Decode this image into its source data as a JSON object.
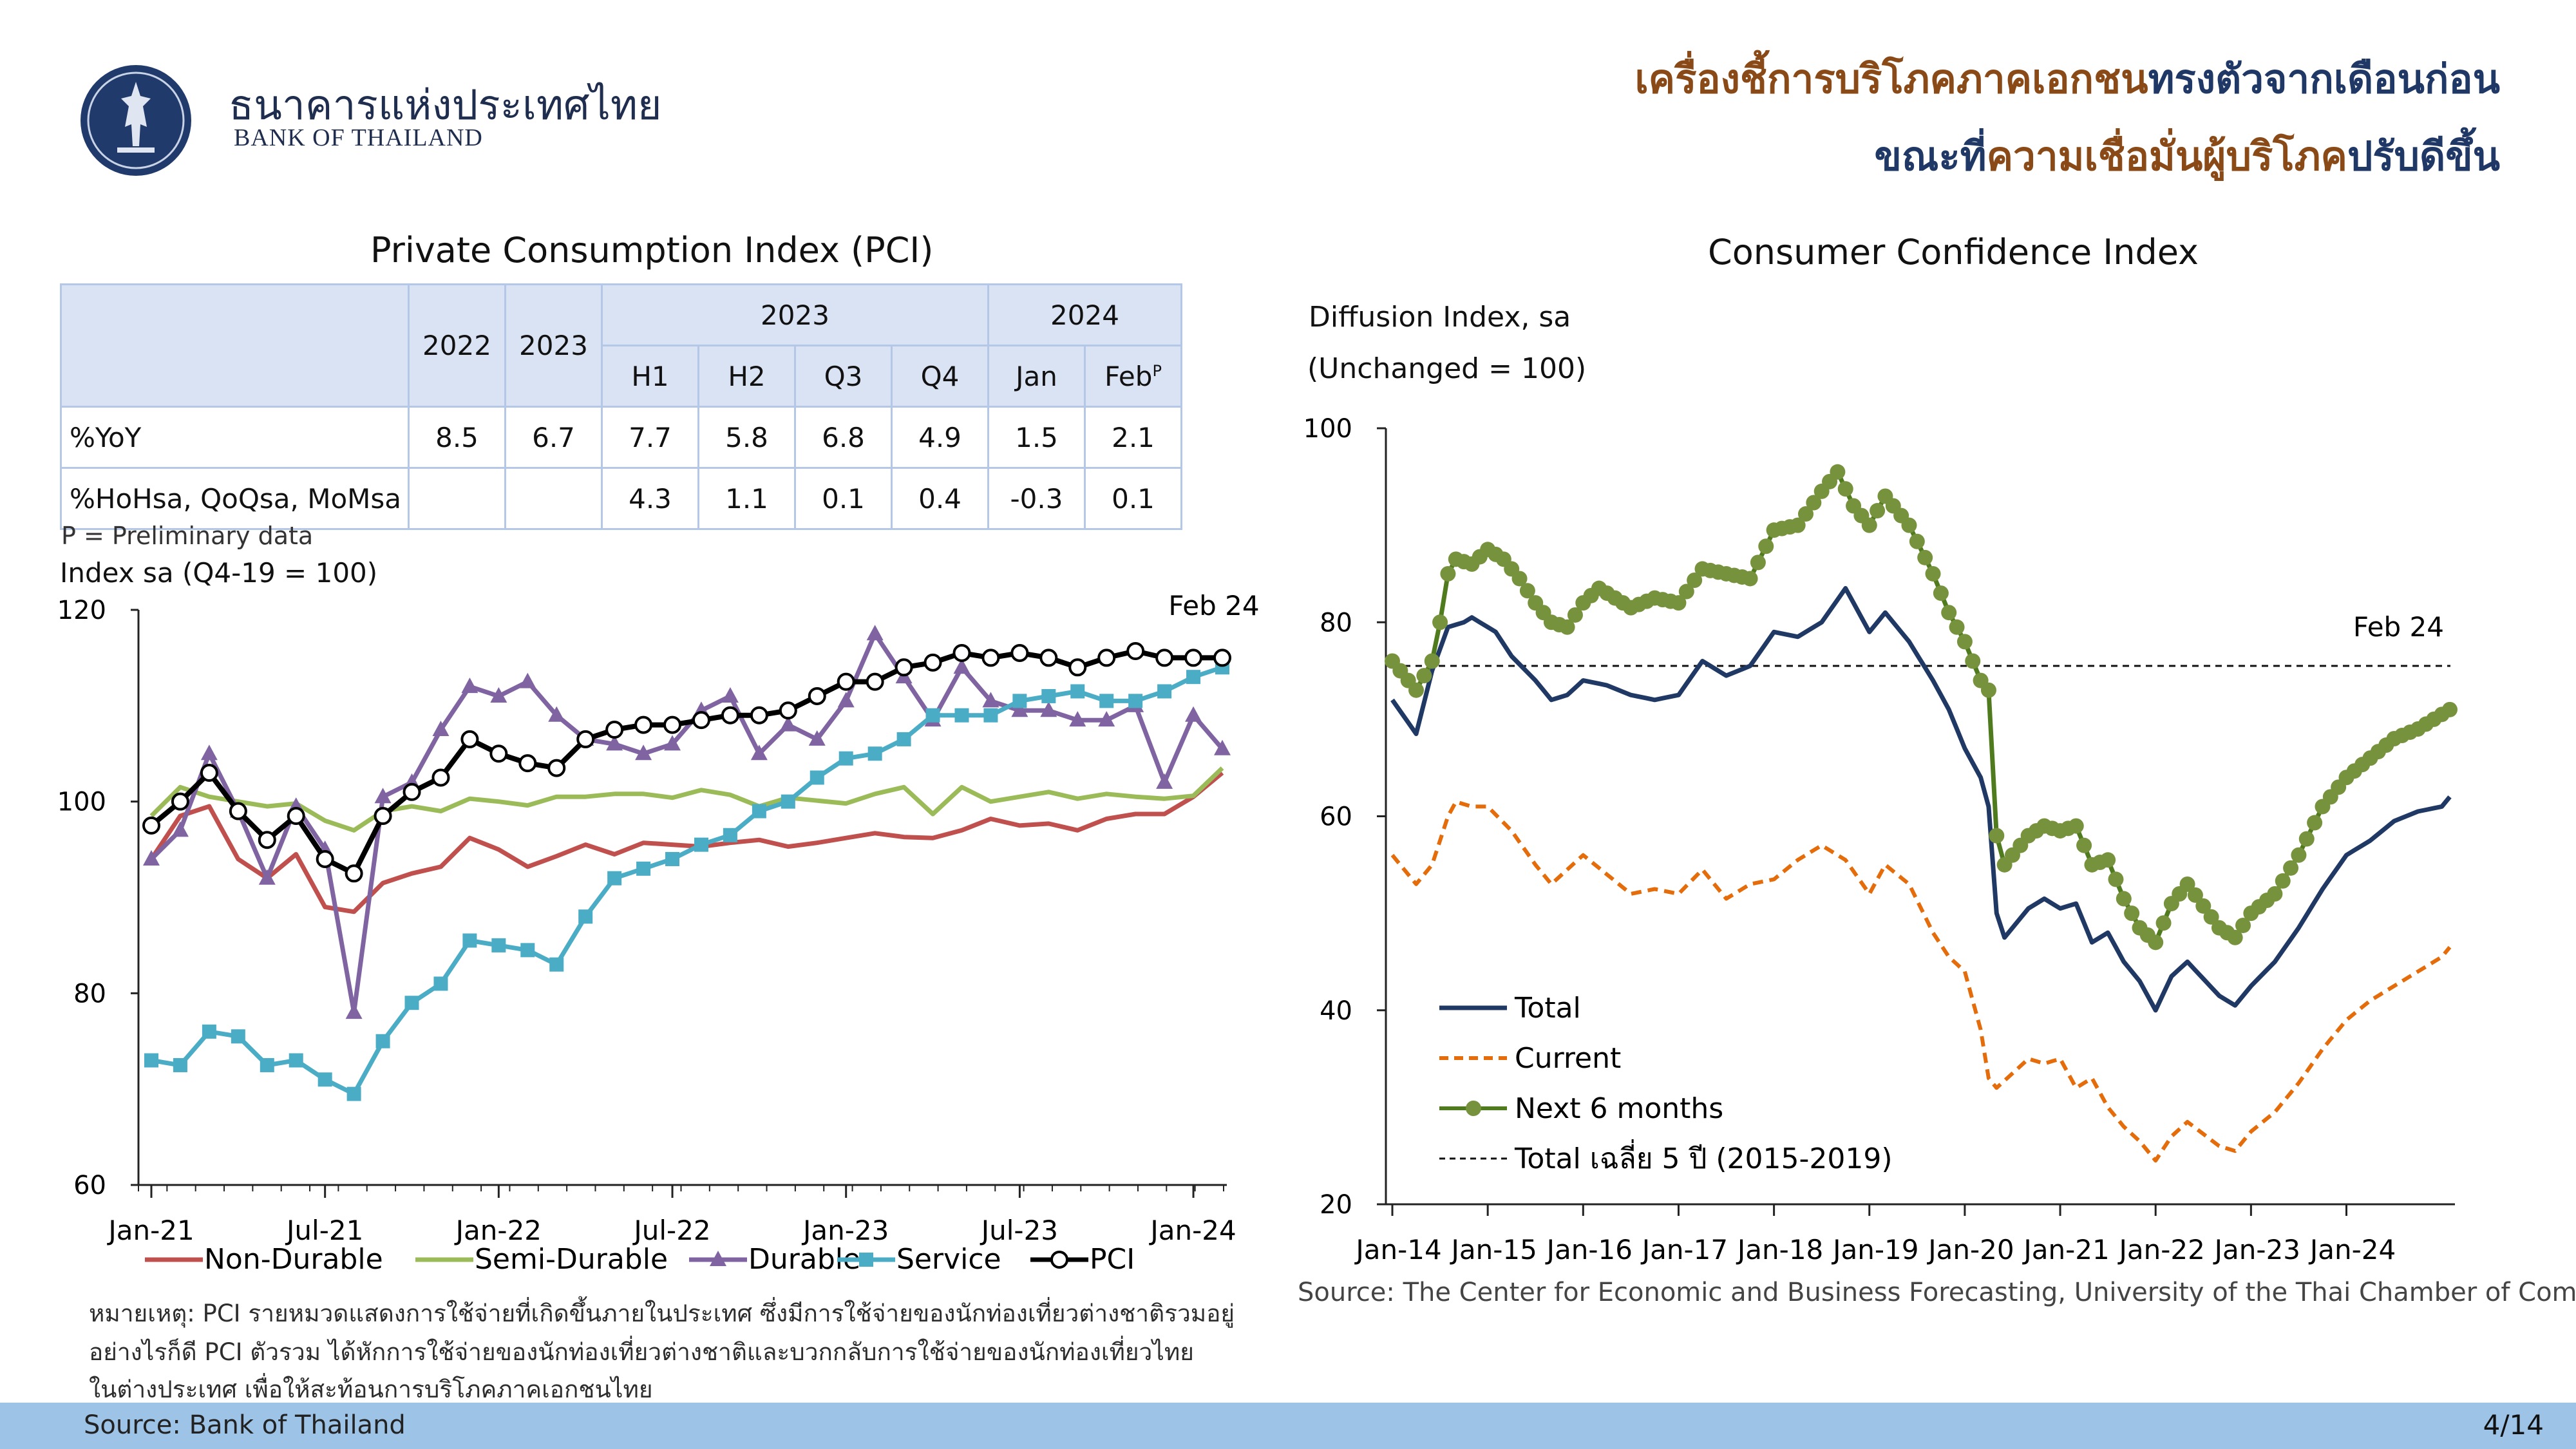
{
  "header": {
    "bank_name_th": "ธนาคารแห่งประเทศไทย",
    "bank_name_en": "BANK OF THAILAND",
    "headline_line1_a": "เครื่องชี้การบริโภคภาคเอกชน",
    "headline_line1_b": "ทรงตัวจากเดือนก่อน",
    "headline_line2_a": "ขณะที่",
    "headline_line2_b": "ความเชื่อมั่นผู้บริโภค",
    "headline_line2_c": "ปรับดีขึ้น"
  },
  "pci_table": {
    "title": "Private Consumption Index (PCI)",
    "years": [
      "2022",
      "2023"
    ],
    "group_2023": "2023",
    "group_2024": "2024",
    "sub_headers": [
      "H1",
      "H2",
      "Q3",
      "Q4",
      "Jan",
      "Feb"
    ],
    "feb_sup": "P",
    "rows": [
      {
        "label": "%YoY",
        "values": [
          "8.5",
          "6.7",
          "7.7",
          "5.8",
          "6.8",
          "4.9",
          "1.5",
          "2.1"
        ]
      },
      {
        "label": "%HoHsa, QoQsa, MoMsa",
        "values": [
          "",
          "",
          "4.3",
          "1.1",
          "0.1",
          "0.4",
          "-0.3",
          "0.1"
        ]
      }
    ],
    "footnote": "P = Preliminary data"
  },
  "notes": {
    "line1": "หมายเหตุ: PCI รายหมวดแสดงการใช้จ่ายที่เกิดขึ้นภายในประเทศ ซึ่งมีการใช้จ่ายของนักท่องเที่ยวต่างชาติรวมอยู่",
    "line2": "อย่างไรก็ดี PCI ตัวรวม ได้หักการใช้จ่ายของนักท่องเที่ยวต่างชาติและบวกกลับการใช้จ่ายของนักท่องเที่ยวไทย",
    "line3": "ในต่างประเทศ เพื่อให้สะท้อนการบริโภคภาคเอกชนไทย"
  },
  "footer": {
    "source_left": "Source: Bank of Thailand",
    "page": "4/14"
  },
  "cci": {
    "title": "Consumer Confidence Index",
    "source": "Source: The Center for Economic and Business Forecasting, University of the Thai Chamber of Commerce"
  },
  "colors": {
    "nondurable": "#c0504d",
    "semidurable": "#9bbb59",
    "durable": "#8064a2",
    "service": "#4bacc6",
    "pci": "#000000",
    "total": "#1f3864",
    "current": "#e46c0a",
    "next6": "#4f7b1e",
    "next6_marker": "#76923c"
  },
  "chart_data": [
    {
      "type": "line",
      "title": "",
      "ylabel": "Index sa (Q4-19 = 100)",
      "ylim": [
        60,
        120
      ],
      "yticks": [
        60,
        80,
        100,
        120
      ],
      "x": [
        "Jan-21",
        "Feb-21",
        "Mar-21",
        "Apr-21",
        "May-21",
        "Jun-21",
        "Jul-21",
        "Aug-21",
        "Sep-21",
        "Oct-21",
        "Nov-21",
        "Dec-21",
        "Jan-22",
        "Feb-22",
        "Mar-22",
        "Apr-22",
        "May-22",
        "Jun-22",
        "Jul-22",
        "Aug-22",
        "Sep-22",
        "Oct-22",
        "Nov-22",
        "Dec-22",
        "Jan-23",
        "Feb-23",
        "Mar-23",
        "Apr-23",
        "May-23",
        "Jun-23",
        "Jul-23",
        "Aug-23",
        "Sep-23",
        "Oct-23",
        "Nov-23",
        "Dec-23",
        "Jan-24",
        "Feb-24"
      ],
      "xtick_labels": [
        "Jan-21",
        "Jul-21",
        "Jan-22",
        "Jul-22",
        "Jan-23",
        "Jul-23",
        "Jan-24"
      ],
      "annotation": "Feb 24",
      "series": [
        {
          "name": "Non-Durable",
          "values": [
            94.0,
            98.5,
            99.5,
            94.0,
            92.0,
            94.5,
            89.0,
            88.5,
            91.5,
            92.5,
            93.2,
            96.2,
            95.0,
            93.2,
            94.3,
            95.5,
            94.5,
            95.7,
            95.5,
            95.3,
            95.7,
            96.0,
            95.3,
            95.7,
            96.2,
            96.7,
            96.3,
            96.2,
            97.0,
            98.2,
            97.5,
            97.7,
            97.0,
            98.2,
            98.7,
            98.7,
            100.5,
            103.0
          ]
        },
        {
          "name": "Semi-Durable",
          "values": [
            98.5,
            101.5,
            100.5,
            100.0,
            99.5,
            99.8,
            98.0,
            97.0,
            99.0,
            99.5,
            99.0,
            100.3,
            100.0,
            99.6,
            100.5,
            100.5,
            100.8,
            100.8,
            100.4,
            101.2,
            100.7,
            99.5,
            100.4,
            100.1,
            99.8,
            100.8,
            101.5,
            98.7,
            101.5,
            100.0,
            100.5,
            101.0,
            100.3,
            100.8,
            100.5,
            100.3,
            100.6,
            103.5
          ]
        },
        {
          "name": "Durable",
          "values": [
            94.0,
            97.0,
            105.0,
            99.0,
            92.0,
            99.5,
            95.0,
            78.0,
            100.5,
            102.0,
            107.5,
            112.0,
            111.0,
            112.5,
            109.0,
            106.5,
            106.0,
            105.0,
            106.0,
            109.5,
            111.0,
            105.0,
            108.0,
            106.5,
            110.5,
            117.5,
            113.0,
            108.5,
            114.0,
            110.5,
            109.5,
            109.5,
            108.5,
            108.5,
            110.0,
            102.0,
            109.0,
            105.5
          ]
        },
        {
          "name": "Service",
          "values": [
            73.0,
            72.5,
            76.0,
            75.5,
            72.5,
            73.0,
            71.0,
            69.5,
            75.0,
            79.0,
            81.0,
            85.5,
            85.0,
            84.5,
            83.0,
            88.0,
            92.0,
            93.0,
            94.0,
            95.5,
            96.5,
            99.0,
            100.0,
            102.5,
            104.5,
            105.0,
            106.5,
            109.0,
            109.0,
            109.0,
            110.5,
            111.0,
            111.5,
            110.5,
            110.5,
            111.5,
            113.0,
            114.0
          ]
        },
        {
          "name": "PCI",
          "values": [
            97.5,
            100.0,
            103.0,
            99.0,
            96.0,
            98.5,
            94.0,
            92.5,
            98.5,
            101.0,
            102.5,
            106.5,
            105.0,
            104.0,
            103.5,
            106.5,
            107.5,
            108.0,
            108.0,
            108.5,
            109.0,
            109.0,
            109.5,
            111.0,
            112.5,
            112.5,
            114.0,
            114.5,
            115.5,
            115.0,
            115.5,
            115.0,
            114.0,
            115.0,
            115.7,
            115.0,
            115.0,
            115.0
          ]
        }
      ]
    },
    {
      "type": "line",
      "title": "Consumer Confidence Index",
      "ylabel_line1": "Diffusion Index, sa",
      "ylabel_line2": "(Unchanged = 100)",
      "ylim": [
        20,
        100
      ],
      "yticks": [
        20,
        40,
        60,
        80,
        100
      ],
      "x_start": "Jan-14",
      "x_end": "Feb-24",
      "xtick_labels": [
        "Jan-14",
        "Jan-15",
        "Jan-16",
        "Jan-17",
        "Jan-18",
        "Jan-19",
        "Jan-20",
        "Jan-21",
        "Jan-22",
        "Jan-23",
        "Jan-24"
      ],
      "annotation": "Feb 24",
      "reference_line": {
        "name": "Total เฉลี่ย 5 ปี (2015-2019)",
        "value": 75.5
      },
      "series": [
        {
          "name": "Total",
          "anchors": [
            [
              0,
              72
            ],
            [
              3,
              68.5
            ],
            [
              5,
              75
            ],
            [
              7,
              79.5
            ],
            [
              9,
              80
            ],
            [
              10,
              80.5
            ],
            [
              11,
              80
            ],
            [
              13,
              79
            ],
            [
              15,
              76.5
            ],
            [
              18,
              74
            ],
            [
              20,
              72
            ],
            [
              22,
              72.5
            ],
            [
              24,
              74
            ],
            [
              27,
              73.5
            ],
            [
              30,
              72.5
            ],
            [
              33,
              72
            ],
            [
              36,
              72.5
            ],
            [
              39,
              76
            ],
            [
              42,
              74.5
            ],
            [
              45,
              75.5
            ],
            [
              48,
              79
            ],
            [
              51,
              78.5
            ],
            [
              54,
              80
            ],
            [
              57,
              83.5
            ],
            [
              60,
              79
            ],
            [
              62,
              81
            ],
            [
              65,
              78
            ],
            [
              68,
              74
            ],
            [
              70,
              71
            ],
            [
              72,
              67
            ],
            [
              74,
              64
            ],
            [
              75,
              61
            ],
            [
              76,
              50
            ],
            [
              77,
              47.5
            ],
            [
              80,
              50.5
            ],
            [
              82,
              51.5
            ],
            [
              84,
              50.5
            ],
            [
              86,
              51
            ],
            [
              88,
              47
            ],
            [
              90,
              48
            ],
            [
              92,
              45
            ],
            [
              94,
              43
            ],
            [
              96,
              40
            ],
            [
              98,
              43.5
            ],
            [
              100,
              45
            ],
            [
              104,
              41.5
            ],
            [
              106,
              40.5
            ],
            [
              108,
              42.5
            ],
            [
              111,
              45
            ],
            [
              114,
              48.5
            ],
            [
              117,
              52.5
            ],
            [
              120,
              56
            ],
            [
              123,
              57.5
            ],
            [
              126,
              59.5
            ],
            [
              129,
              60.5
            ],
            [
              132,
              61
            ],
            [
              133,
              62
            ]
          ]
        },
        {
          "name": "Current",
          "anchors": [
            [
              0,
              56
            ],
            [
              3,
              53
            ],
            [
              5,
              55
            ],
            [
              7,
              60
            ],
            [
              8,
              61.5
            ],
            [
              10,
              61
            ],
            [
              12,
              61
            ],
            [
              15,
              58.5
            ],
            [
              18,
              55
            ],
            [
              20,
              53
            ],
            [
              24,
              56
            ],
            [
              27,
              54
            ],
            [
              30,
              52
            ],
            [
              33,
              52.5
            ],
            [
              36,
              52
            ],
            [
              39,
              54.5
            ],
            [
              42,
              51.5
            ],
            [
              45,
              53
            ],
            [
              48,
              53.5
            ],
            [
              51,
              55.5
            ],
            [
              54,
              57
            ],
            [
              57,
              55.5
            ],
            [
              60,
              52
            ],
            [
              62,
              55
            ],
            [
              65,
              53
            ],
            [
              68,
              48
            ],
            [
              70,
              45.5
            ],
            [
              72,
              44
            ],
            [
              74,
              38
            ],
            [
              75,
              33
            ],
            [
              76,
              32
            ],
            [
              80,
              35
            ],
            [
              82,
              34.5
            ],
            [
              84,
              35
            ],
            [
              86,
              32
            ],
            [
              88,
              33
            ],
            [
              90,
              30
            ],
            [
              92,
              28
            ],
            [
              94,
              26.5
            ],
            [
              96,
              24.5
            ],
            [
              98,
              27
            ],
            [
              100,
              28.5
            ],
            [
              104,
              26
            ],
            [
              106,
              25.5
            ],
            [
              108,
              27.5
            ],
            [
              111,
              29.5
            ],
            [
              114,
              32.5
            ],
            [
              117,
              36
            ],
            [
              120,
              39
            ],
            [
              123,
              41
            ],
            [
              126,
              42.5
            ],
            [
              129,
              44
            ],
            [
              132,
              45.5
            ],
            [
              133,
              46.5
            ]
          ]
        },
        {
          "name": "Next 6 months",
          "anchors": [
            [
              0,
              76
            ],
            [
              3,
              73
            ],
            [
              5,
              76
            ],
            [
              6,
              80
            ],
            [
              7,
              85
            ],
            [
              8,
              86.5
            ],
            [
              10,
              86
            ],
            [
              12,
              87.5
            ],
            [
              14,
              86.5
            ],
            [
              16,
              84.5
            ],
            [
              18,
              82
            ],
            [
              20,
              80
            ],
            [
              22,
              79.5
            ],
            [
              24,
              82
            ],
            [
              26,
              83.5
            ],
            [
              30,
              81.5
            ],
            [
              33,
              82.5
            ],
            [
              36,
              82
            ],
            [
              39,
              85.5
            ],
            [
              42,
              85
            ],
            [
              45,
              84.5
            ],
            [
              48,
              89.5
            ],
            [
              51,
              90
            ],
            [
              54,
              93.5
            ],
            [
              56,
              95.5
            ],
            [
              58,
              92
            ],
            [
              60,
              90
            ],
            [
              62,
              93
            ],
            [
              65,
              90
            ],
            [
              68,
              85
            ],
            [
              70,
              81
            ],
            [
              72,
              78
            ],
            [
              74,
              74
            ],
            [
              75,
              73
            ],
            [
              76,
              58
            ],
            [
              77,
              55
            ],
            [
              80,
              58
            ],
            [
              82,
              59
            ],
            [
              84,
              58.5
            ],
            [
              86,
              59
            ],
            [
              88,
              55
            ],
            [
              90,
              55.5
            ],
            [
              92,
              51.5
            ],
            [
              94,
              48.5
            ],
            [
              96,
              47
            ],
            [
              98,
              51
            ],
            [
              100,
              53
            ],
            [
              104,
              48.5
            ],
            [
              106,
              47.5
            ],
            [
              108,
              50
            ],
            [
              111,
              52
            ],
            [
              114,
              56
            ],
            [
              117,
              61
            ],
            [
              120,
              64
            ],
            [
              123,
              66
            ],
            [
              126,
              68
            ],
            [
              129,
              69
            ],
            [
              132,
              70.5
            ],
            [
              133,
              71
            ]
          ]
        }
      ]
    }
  ]
}
